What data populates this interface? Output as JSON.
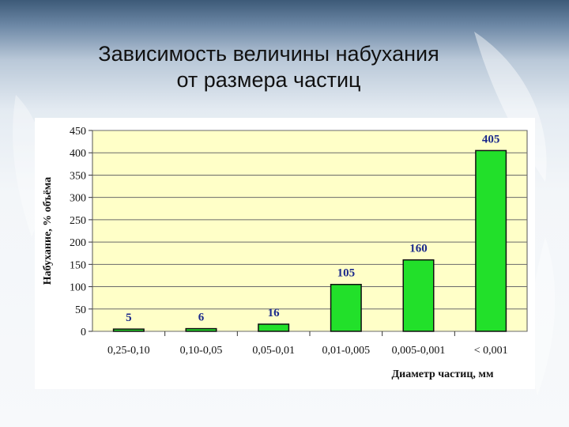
{
  "slide": {
    "title_line1": "Зависимость величины набухания",
    "title_line2": "от размера частиц"
  },
  "colors": {
    "bar_fill": "#22e02a",
    "bar_stroke": "#111111",
    "plot_bg": "#ffffc8",
    "data_label": "#1c2a8c"
  },
  "chart_data": {
    "type": "bar",
    "title": "",
    "categories": [
      "0,25-0,10",
      "0,10-0,05",
      "0,05-0,01",
      "0,01-0,005",
      "0,005-0,001",
      "< 0,001"
    ],
    "values": [
      5,
      6,
      16,
      105,
      160,
      405
    ],
    "value_labels": [
      "5",
      "6",
      "16",
      "105",
      "160",
      "405"
    ],
    "xlabel": "Диаметр частиц, мм",
    "ylabel": "Набухание, % объёма",
    "ylim": [
      0,
      450
    ],
    "yticks": [
      "0",
      "50",
      "100",
      "150",
      "200",
      "250",
      "300",
      "350",
      "400",
      "450"
    ],
    "grid": true,
    "legend": "none"
  }
}
